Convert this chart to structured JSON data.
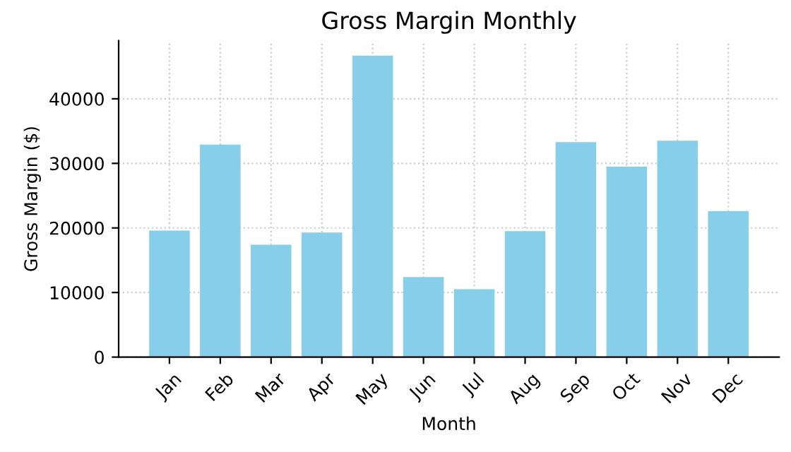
{
  "chart_data": {
    "type": "bar",
    "title": "Gross Margin Monthly",
    "xlabel": "Month",
    "ylabel": "Gross Margin ($)",
    "categories": [
      "Jan",
      "Feb",
      "Mar",
      "Apr",
      "May",
      "Jun",
      "Jul",
      "Aug",
      "Sep",
      "Oct",
      "Nov",
      "Dec"
    ],
    "values": [
      19600,
      32900,
      17400,
      19300,
      46700,
      12400,
      10500,
      19500,
      33300,
      29500,
      33500,
      22600
    ],
    "color": "#87ceeb",
    "ylim": [
      0,
      49000
    ],
    "yticks": [
      0,
      10000,
      20000,
      30000,
      40000
    ],
    "grid": true
  }
}
